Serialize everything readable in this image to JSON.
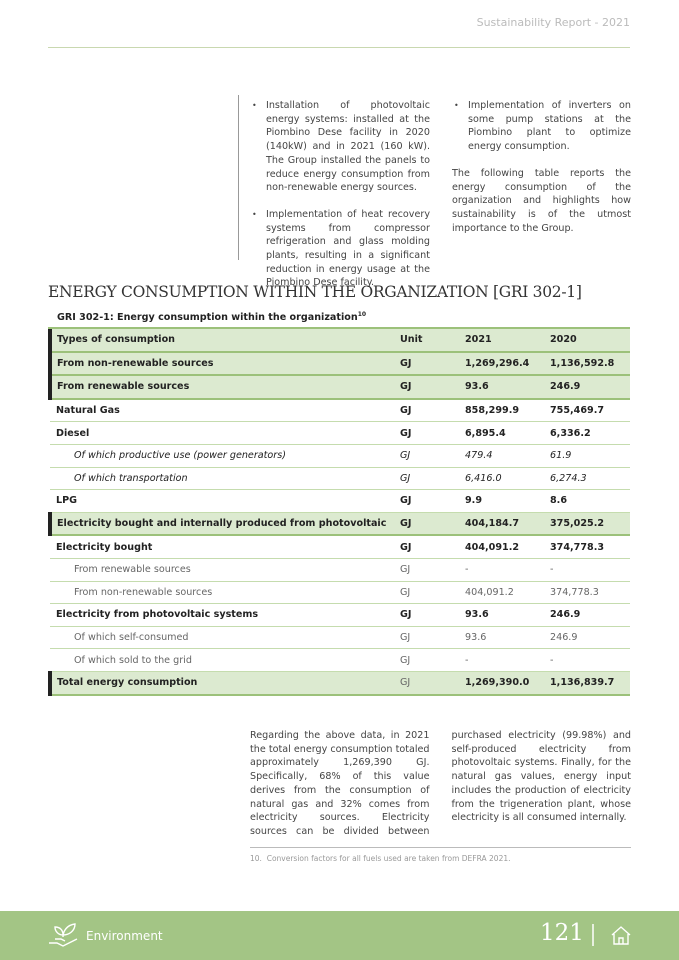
{
  "header": {
    "title": "Sustainability Report - 2021"
  },
  "intro": {
    "bullets": [
      "Installation of photovoltaic energy systems: installed at the Piombino Dese facility in 2020 (140kW) and in 2021 (160 kW). The Group installed the panels to reduce energy consumption from non-renewable energy sources.",
      "Implementation of heat recovery systems from compressor refrigeration and glass molding plants, resulting in a significant reduction in energy usage at the Piombino Dese facility.",
      "Implementation of inverters on some pump stations at the Piombino plant to optimize energy consumption."
    ],
    "paragraph": "The following table reports the energy consumption of the organization and highlights how sustainability is of the utmost importance to the Group."
  },
  "section": {
    "title": "ENERGY CONSUMPTION WITHIN THE ORGANIZATION [GRI 302-1]"
  },
  "table": {
    "caption": "GRI 302-1: Energy consumption within the organization",
    "caption_note": "10",
    "columns": [
      "Types of consumption",
      "Unit",
      "2021",
      "2020"
    ],
    "rows": [
      [
        "From non-renewable sources",
        "GJ",
        "1,269,296.4",
        "1,136,592.8"
      ],
      [
        "From renewable sources",
        "GJ",
        "93.6",
        "246.9"
      ],
      [
        "Natural Gas",
        "GJ",
        "858,299.9",
        "755,469.7"
      ],
      [
        "Diesel",
        "GJ",
        "6,895.4",
        "6,336.2"
      ],
      [
        "Of which productive use (power generators)",
        "GJ",
        "479.4",
        "61.9"
      ],
      [
        "Of which transportation",
        "GJ",
        "6,416.0",
        "6,274.3"
      ],
      [
        "LPG",
        "GJ",
        "9.9",
        "8.6"
      ],
      [
        "Electricity bought and internally produced from photovoltaic",
        "GJ",
        "404,184.7",
        "375,025.2"
      ],
      [
        "Electricity bought",
        "GJ",
        "404,091.2",
        "374,778.3"
      ],
      [
        "From renewable sources",
        "GJ",
        "-",
        "-"
      ],
      [
        "From non-renewable sources",
        "GJ",
        "404,091.2",
        "374,778.3"
      ],
      [
        "Electricity from photovoltaic systems",
        "GJ",
        "93.6",
        "246.9"
      ],
      [
        "Of which self-consumed",
        "GJ",
        "93.6",
        "246.9"
      ],
      [
        "Of which sold to the grid",
        "GJ",
        "-",
        "-"
      ],
      [
        "Total energy consumption",
        "GJ",
        "1,269,390.0",
        "1,136,839.7"
      ]
    ]
  },
  "body": {
    "paragraphs": [
      "Regarding the above data, in 2021 the total energy consumption totaled approximately 1,269,390 GJ. Specifically, 68% of this value derives from the consumption of natural gas and 32% comes from electricity sources. Electricity sources can be divided between purchased electricity (99.98%) and self-produced electricity from photovoltaic systems. Finally, for the natural gas values, energy input includes the production of electricity from the trigeneration plant, whose electricity is all consumed internally."
    ]
  },
  "footnote": {
    "number": "10.",
    "text": "Conversion factors for all fuels used are taken from DEFRA 2021."
  },
  "footer": {
    "section": "Environment",
    "page": "121"
  }
}
